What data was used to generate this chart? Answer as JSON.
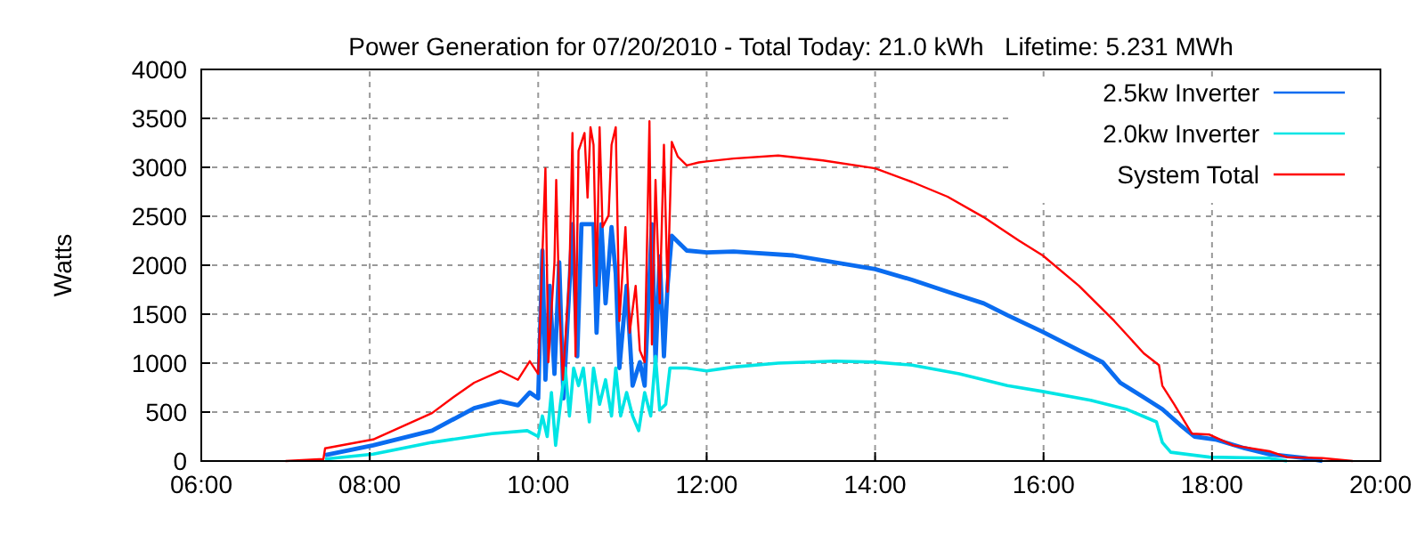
{
  "chart_data": {
    "type": "line",
    "title": "Power Generation for 07/20/2010 - Total Today: 21.0 kWh   Lifetime: 5.231 MWh",
    "ylabel": "Watts",
    "xlim": [
      6,
      20
    ],
    "ylim": [
      0,
      4000
    ],
    "xticks": [
      {
        "value": 6,
        "label": "06:00"
      },
      {
        "value": 8,
        "label": "08:00"
      },
      {
        "value": 10,
        "label": "10:00"
      },
      {
        "value": 12,
        "label": "12:00"
      },
      {
        "value": 14,
        "label": "14:00"
      },
      {
        "value": 16,
        "label": "16:00"
      },
      {
        "value": 18,
        "label": "18:00"
      },
      {
        "value": 20,
        "label": "20:00"
      }
    ],
    "yticks": [
      0,
      500,
      1000,
      1500,
      2000,
      2500,
      3000,
      3500,
      4000
    ],
    "grid": true,
    "legend": "top right",
    "marker": "none",
    "line_style": "solid",
    "series": [
      {
        "name": "2.5kw Inverter",
        "color": "#0a6cf0",
        "x": [
          7.47,
          8.04,
          8.74,
          9.24,
          9.55,
          9.76,
          9.9,
          10.0,
          10.05,
          10.086,
          10.136,
          10.193,
          10.25,
          10.3,
          10.371,
          10.407,
          10.464,
          10.514,
          10.657,
          10.693,
          10.75,
          10.8,
          10.871,
          10.921,
          10.964,
          11.05,
          11.121,
          11.207,
          11.264,
          11.35,
          11.393,
          11.443,
          11.493,
          11.536,
          11.586,
          11.764,
          12.0,
          12.32,
          13.03,
          14.0,
          14.44,
          14.86,
          15.29,
          15.57,
          15.99,
          16.42,
          16.7,
          16.91,
          17.19,
          17.41,
          17.62,
          17.79,
          18.04,
          18.39,
          18.68,
          19.1,
          19.31
        ],
        "values": [
          60,
          160,
          310,
          540,
          610,
          570,
          700,
          640,
          2150,
          830,
          1790,
          890,
          2030,
          640,
          1790,
          2420,
          1070,
          2420,
          2420,
          1310,
          2420,
          1610,
          2390,
          1910,
          950,
          1790,
          770,
          1010,
          770,
          2420,
          1010,
          2090,
          1070,
          1790,
          2300,
          2150,
          2130,
          2140,
          2100,
          1960,
          1850,
          1730,
          1610,
          1490,
          1320,
          1130,
          1010,
          800,
          650,
          530,
          370,
          250,
          220,
          130,
          70,
          30,
          0
        ]
      },
      {
        "name": "2.0kw Inverter",
        "color": "#00e5e5",
        "x": [
          7.47,
          8.04,
          8.74,
          9.45,
          9.87,
          10.0,
          10.05,
          10.107,
          10.157,
          10.207,
          10.264,
          10.321,
          10.371,
          10.421,
          10.479,
          10.536,
          10.607,
          10.657,
          10.729,
          10.8,
          10.871,
          10.921,
          10.979,
          11.05,
          11.121,
          11.193,
          11.264,
          11.336,
          11.393,
          11.443,
          11.514,
          11.564,
          11.764,
          12.0,
          12.32,
          12.85,
          13.52,
          14.0,
          14.44,
          15.0,
          15.57,
          15.99,
          16.56,
          16.98,
          17.34,
          17.41,
          17.51,
          17.97,
          18.68,
          18.89
        ],
        "values": [
          20,
          70,
          190,
          280,
          310,
          250,
          460,
          250,
          700,
          160,
          580,
          950,
          460,
          950,
          770,
          950,
          400,
          950,
          580,
          830,
          460,
          950,
          460,
          700,
          460,
          310,
          700,
          460,
          1070,
          520,
          580,
          950,
          950,
          920,
          960,
          1000,
          1020,
          1010,
          980,
          890,
          770,
          710,
          620,
          530,
          400,
          190,
          90,
          40,
          30,
          0
        ]
      },
      {
        "name": "System Total",
        "color": "#ff0000",
        "x": [
          7.0,
          7.45,
          7.47,
          8.04,
          8.74,
          8.99,
          9.24,
          9.55,
          9.76,
          9.9,
          10.0,
          10.086,
          10.121,
          10.193,
          10.214,
          10.25,
          10.293,
          10.371,
          10.407,
          10.443,
          10.479,
          10.55,
          10.586,
          10.621,
          10.657,
          10.693,
          10.729,
          10.764,
          10.836,
          10.871,
          10.921,
          10.964,
          11.036,
          11.086,
          11.157,
          11.207,
          11.264,
          11.321,
          11.35,
          11.393,
          11.443,
          11.493,
          11.536,
          11.586,
          11.657,
          11.764,
          11.907,
          12.0,
          12.32,
          12.85,
          13.38,
          14.0,
          14.44,
          14.86,
          15.29,
          15.71,
          15.99,
          16.42,
          16.84,
          17.19,
          17.37,
          17.41,
          17.55,
          17.76,
          17.97,
          18.25,
          18.68,
          18.89,
          19.31,
          19.67
        ],
        "values": [
          0,
          20,
          130,
          220,
          490,
          650,
          800,
          920,
          830,
          1020,
          890,
          2990,
          1010,
          2030,
          2870,
          1610,
          830,
          1910,
          3350,
          1070,
          3170,
          3350,
          2690,
          3410,
          3230,
          1790,
          3410,
          2390,
          2510,
          3230,
          3410,
          1430,
          2390,
          1310,
          1790,
          1130,
          1010,
          3470,
          1190,
          2870,
          1610,
          3230,
          1730,
          3260,
          3110,
          3020,
          3050,
          3060,
          3090,
          3120,
          3070,
          2990,
          2850,
          2700,
          2490,
          2250,
          2100,
          1790,
          1430,
          1100,
          980,
          770,
          580,
          280,
          270,
          160,
          100,
          40,
          30,
          0
        ]
      }
    ]
  }
}
